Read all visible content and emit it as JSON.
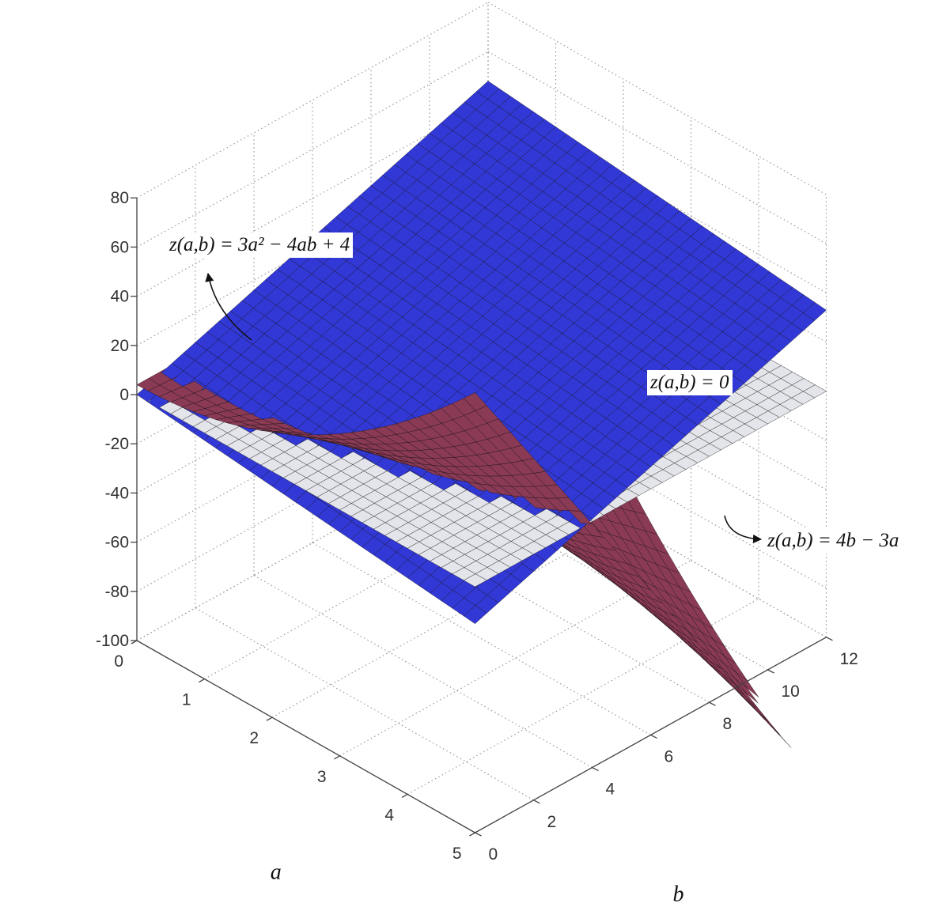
{
  "chart_data": {
    "type": "surface3d",
    "xlabel": "a",
    "ylabel": "b",
    "zlabel": "",
    "xlim": [
      0,
      5
    ],
    "ylim": [
      0,
      12
    ],
    "zlim": [
      -100,
      80
    ],
    "x_ticks": [
      0,
      1,
      2,
      3,
      4,
      5
    ],
    "y_ticks": [
      0,
      2,
      4,
      6,
      8,
      10,
      12
    ],
    "z_ticks": [
      -100,
      -80,
      -60,
      -40,
      -20,
      0,
      20,
      40,
      60,
      80
    ],
    "grid": true,
    "series": [
      {
        "name": "z(a,b) = 0",
        "expression": "0",
        "color": "#e3e5ea"
      },
      {
        "name": "z(a,b) = 3a² − 4ab + 4",
        "expression": "3a^2 - 4ab + 4",
        "color": "#8b3a55"
      },
      {
        "name": "z(a,b) = 4b − 3a",
        "expression": "4b - 3a",
        "color": "#3238d6"
      }
    ],
    "annotations": [
      {
        "text": "z(a,b) = 3a² − 4ab + 4",
        "target": "z(a,b) = 3a² − 4ab + 4"
      },
      {
        "text": "z(a,b) = 0",
        "target": "z(a,b) = 0"
      },
      {
        "text": "z(a,b) = 4b − 3a",
        "target": "z(a,b) = 4b − 3a"
      }
    ]
  },
  "colors": {
    "zero_plane": "#e3e5ea",
    "quadratic_surface": "#8b3a55",
    "linear_surface": "#3238d6",
    "mesh": "#111111",
    "grid": "#9a9a9a"
  }
}
